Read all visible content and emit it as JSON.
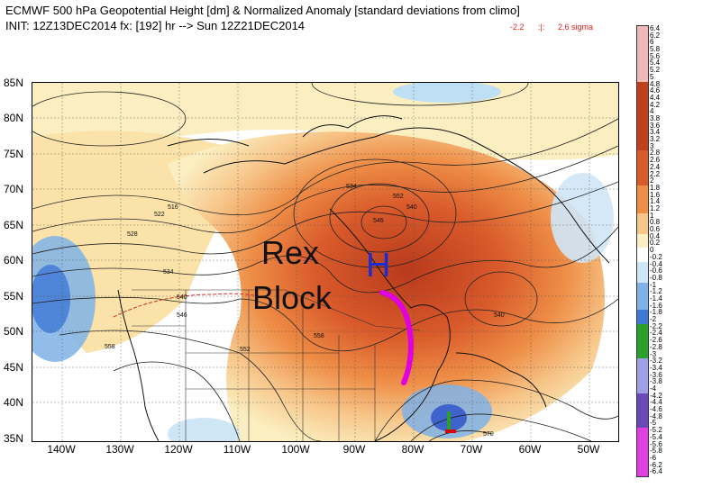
{
  "header": {
    "line1": "ECMWF 500 hPa Geopotential Height [dm] & Normalized Anomaly [standard deviations from climo]",
    "line2": "INIT: 12Z13DEC2014  fx: [192] hr  --> Sun 12Z21DEC2014",
    "sigma_min": "-2.2",
    "sigma_sep": ":|:",
    "sigma_max": "2.6 sigma"
  },
  "lat_labels": [
    "85N",
    "80N",
    "75N",
    "70N",
    "65N",
    "60N",
    "55N",
    "50N",
    "45N",
    "40N",
    "35N"
  ],
  "lon_labels": [
    "140W",
    "130W",
    "120W",
    "110W",
    "100W",
    "90W",
    "80W",
    "70W",
    "60W",
    "50W"
  ],
  "contour_labels": [
    "516",
    "522",
    "528",
    "534",
    "540",
    "546",
    "552",
    "558",
    "570",
    "540",
    "558",
    "546",
    "552",
    "540",
    "534"
  ],
  "annotations": {
    "rex": "Rex",
    "block": "Block",
    "high": "H"
  },
  "colorbar_labels": [
    "6.4",
    "6.2",
    "6",
    "5.8",
    "5.6",
    "5.4",
    "5.2",
    "5",
    "4.8",
    "4.6",
    "4.4",
    "4.2",
    "4",
    "3.8",
    "3.6",
    "3.4",
    "3.2",
    "3",
    "2.8",
    "2.6",
    "2.4",
    "2.2",
    "2",
    "1.8",
    "1.6",
    "1.4",
    "1.2",
    "1",
    "0.8",
    "0.6",
    "0.4",
    "0.2",
    "0",
    "-0.2",
    "-0.4",
    "-0.6",
    "-0.8",
    "-1",
    "-1.2",
    "-1.4",
    "-1.6",
    "-1.8",
    "-2",
    "-2.2",
    "-2.4",
    "-2.6",
    "-2.8",
    "-3",
    "-3.2",
    "-3.4",
    "-3.6",
    "-3.8",
    "-4",
    "-4.2",
    "-4.4",
    "-4.6",
    "-4.8",
    "-5",
    "-5.2",
    "-5.4",
    "-5.6",
    "-5.8",
    "-6",
    "-6.2",
    "-6.4"
  ],
  "colors": {
    "anomaly_strong": "#c0401e",
    "anomaly_mid": "#e8783a",
    "anomaly_weak": "#f7c68a",
    "anomaly_faint": "#fbeec0",
    "negative_light": "#cfe6f7",
    "negative_mid": "#7fb2e8",
    "block_arrow": "#e000e0",
    "high_letter": "#1a2ed0",
    "sigma_text": "#e0201a"
  }
}
